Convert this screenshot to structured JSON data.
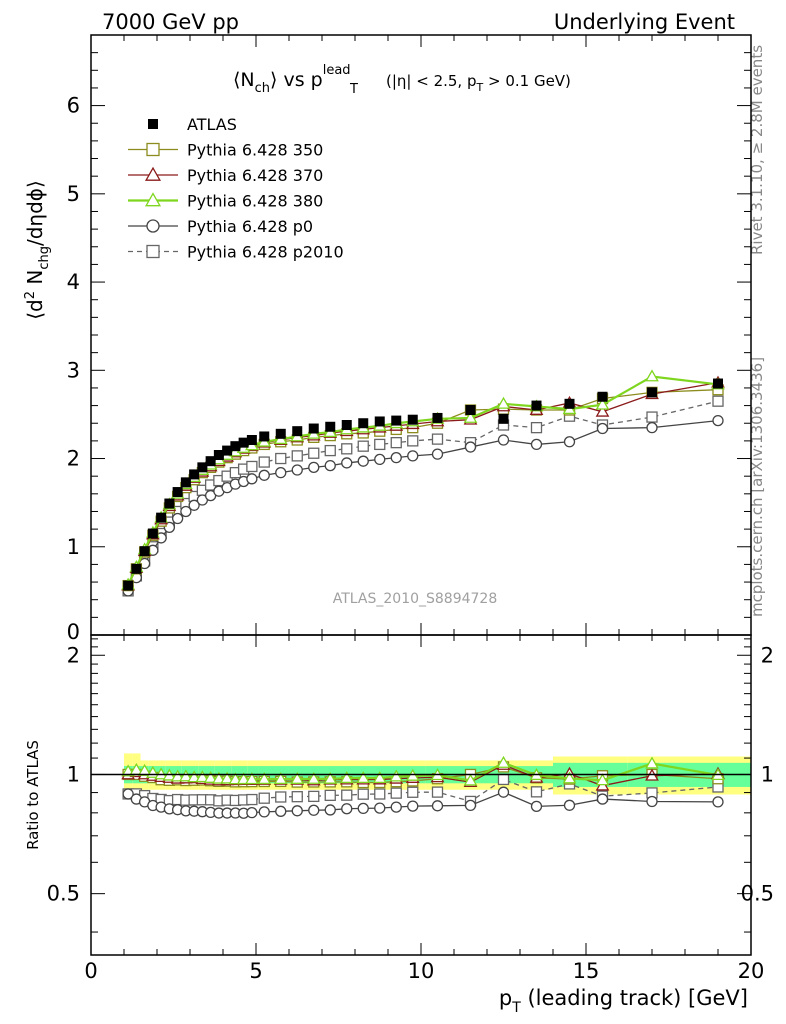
{
  "header": {
    "left": "7000 GeV pp",
    "right": "Underlying Event"
  },
  "title": {
    "part1": "⟨N",
    "sub1": "ch",
    "part2": "⟩ vs p",
    "sup2": "lead",
    "sub2": "T",
    "cuts1": "(|η| < 2.5, p",
    "cuts_sub": "T",
    "cuts2": " > 0.1 GeV)"
  },
  "side_labels": {
    "rivet": "Rivet 3.1.10, ≥ 2.8M events",
    "mcplots": "mcplots.cern.ch [arXiv:1306.3436]"
  },
  "watermark": "ATLAS_2010_S8894728",
  "ylabel_main": {
    "pre": "⟨d",
    "sup": "2",
    "mid": " N",
    "sub": "chg",
    "post": "/dηdϕ⟩"
  },
  "ylabel_ratio": "Ratio to ATLAS",
  "xlabel": {
    "pre": "p",
    "sub": "T",
    "post": " (leading track) [GeV]"
  },
  "colors": {
    "atlas": "#000000",
    "p350": "#8c8c1e",
    "p370": "#8b1a1a",
    "p380": "#7fd61f",
    "p0": "#444444",
    "p2010": "#666666",
    "band_outer": "#ffff80",
    "band_inner": "#66ff99"
  },
  "chart_data": {
    "type": "scatter",
    "xlim": [
      0,
      20
    ],
    "ylim": [
      0,
      6.8
    ],
    "ratio_ylim": [
      0.35,
      2.25
    ],
    "x_ticks": [
      "0",
      "5",
      "10",
      "15",
      "20"
    ],
    "y_ticks": [
      "1",
      "2",
      "3",
      "4",
      "5",
      "6"
    ],
    "y_tick_zero": "0",
    "ratio_ticks": [
      "0.5",
      "1",
      "2"
    ],
    "x": [
      1.125,
      1.375,
      1.625,
      1.875,
      2.125,
      2.375,
      2.625,
      2.875,
      3.125,
      3.375,
      3.625,
      3.875,
      4.125,
      4.375,
      4.625,
      4.875,
      5.25,
      5.75,
      6.25,
      6.75,
      7.25,
      7.75,
      8.25,
      8.75,
      9.25,
      9.75,
      10.5,
      11.5,
      12.5,
      13.5,
      14.5,
      15.5,
      17.0,
      19.0
    ],
    "legend": [
      {
        "key": "atlas",
        "label": "ATLAS"
      },
      {
        "key": "p350",
        "label": "Pythia 6.428 350"
      },
      {
        "key": "p370",
        "label": "Pythia 6.428 370"
      },
      {
        "key": "p380",
        "label": "Pythia 6.428 380"
      },
      {
        "key": "p0",
        "label": "Pythia 6.428 p0"
      },
      {
        "key": "p2010",
        "label": "Pythia 6.428 p2010"
      }
    ],
    "series": [
      {
        "key": "atlas",
        "name": "ATLAS",
        "marker": "filled-square",
        "values": [
          0.56,
          0.75,
          0.95,
          1.15,
          1.33,
          1.49,
          1.62,
          1.73,
          1.82,
          1.9,
          1.97,
          2.04,
          2.09,
          2.14,
          2.18,
          2.21,
          2.25,
          2.28,
          2.31,
          2.34,
          2.36,
          2.38,
          2.4,
          2.42,
          2.43,
          2.44,
          2.46,
          2.55,
          2.45,
          2.6,
          2.62,
          2.7,
          2.75,
          2.85
        ]
      },
      {
        "key": "p350",
        "name": "Pythia 6.428 350",
        "marker": "open-square",
        "values": [
          0.56,
          0.75,
          0.94,
          1.13,
          1.29,
          1.44,
          1.57,
          1.67,
          1.76,
          1.84,
          1.9,
          1.96,
          2.01,
          2.05,
          2.09,
          2.12,
          2.16,
          2.19,
          2.21,
          2.24,
          2.26,
          2.28,
          2.29,
          2.31,
          2.33,
          2.35,
          2.4,
          2.55,
          2.56,
          2.55,
          2.55,
          2.68,
          2.75,
          2.78
        ]
      },
      {
        "key": "p370",
        "name": "Pythia 6.428 370",
        "marker": "open-triangle",
        "values": [
          0.56,
          0.76,
          0.95,
          1.14,
          1.31,
          1.46,
          1.58,
          1.69,
          1.78,
          1.85,
          1.91,
          1.97,
          2.02,
          2.07,
          2.11,
          2.14,
          2.18,
          2.21,
          2.24,
          2.26,
          2.29,
          2.31,
          2.33,
          2.35,
          2.37,
          2.39,
          2.42,
          2.44,
          2.59,
          2.55,
          2.63,
          2.53,
          2.73,
          2.86
        ]
      },
      {
        "key": "p380",
        "name": "Pythia 6.428 380",
        "marker": "open-triangle",
        "values": [
          0.57,
          0.77,
          0.97,
          1.16,
          1.33,
          1.48,
          1.6,
          1.71,
          1.79,
          1.87,
          1.93,
          1.99,
          2.04,
          2.08,
          2.12,
          2.15,
          2.19,
          2.22,
          2.25,
          2.28,
          2.3,
          2.33,
          2.35,
          2.37,
          2.4,
          2.42,
          2.45,
          2.46,
          2.62,
          2.59,
          2.56,
          2.61,
          2.93,
          2.84
        ]
      },
      {
        "key": "p0",
        "name": "Pythia 6.428 p0",
        "marker": "open-circle",
        "values": [
          0.5,
          0.65,
          0.81,
          0.96,
          1.1,
          1.22,
          1.32,
          1.4,
          1.47,
          1.53,
          1.58,
          1.63,
          1.67,
          1.71,
          1.74,
          1.77,
          1.81,
          1.84,
          1.87,
          1.9,
          1.92,
          1.95,
          1.97,
          1.99,
          2.01,
          2.03,
          2.05,
          2.13,
          2.21,
          2.16,
          2.19,
          2.34,
          2.35,
          2.43
        ]
      },
      {
        "key": "p2010",
        "name": "Pythia 6.428 p2010",
        "marker": "open-square",
        "dashed": true,
        "values": [
          0.5,
          0.67,
          0.84,
          1.0,
          1.15,
          1.28,
          1.4,
          1.49,
          1.57,
          1.64,
          1.7,
          1.75,
          1.8,
          1.84,
          1.88,
          1.91,
          1.96,
          2.0,
          2.03,
          2.06,
          2.09,
          2.11,
          2.14,
          2.16,
          2.18,
          2.2,
          2.22,
          2.18,
          2.38,
          2.35,
          2.48,
          2.38,
          2.47,
          2.65
        ]
      }
    ]
  }
}
